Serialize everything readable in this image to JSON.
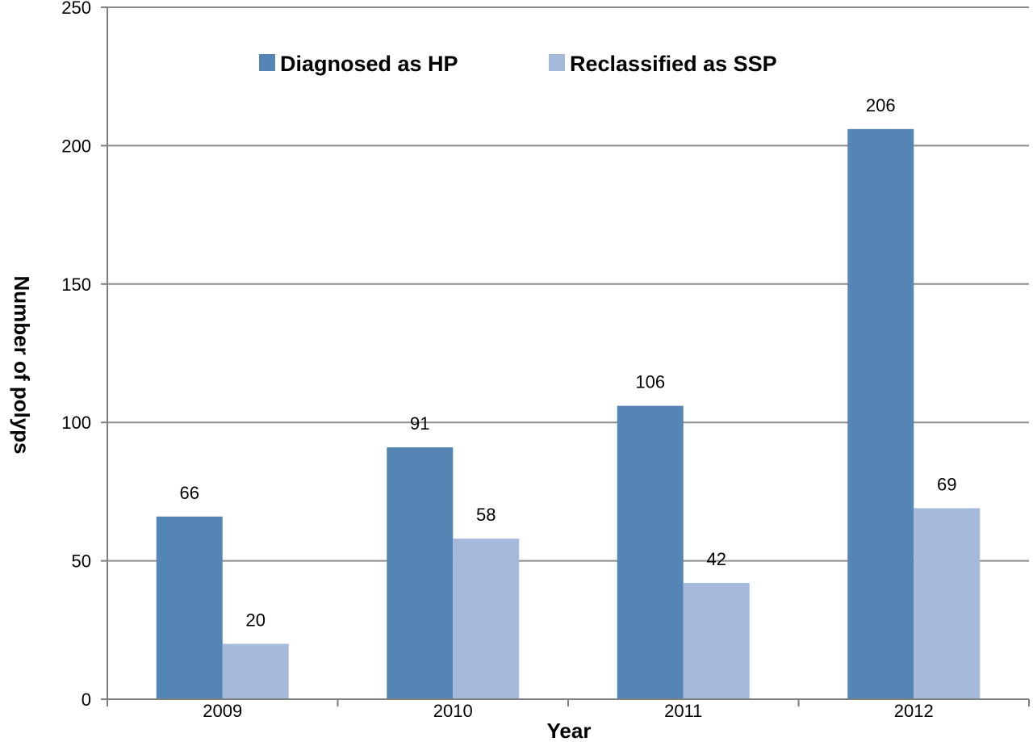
{
  "chart_data": {
    "type": "bar",
    "title": "",
    "xlabel": "Year",
    "ylabel": "Number of polyps",
    "categories": [
      "2009",
      "2010",
      "2011",
      "2012"
    ],
    "series": [
      {
        "name": "Diagnosed as HP",
        "values": [
          66,
          91,
          106,
          206
        ],
        "color": "#5585b5"
      },
      {
        "name": "Reclassified as SSP",
        "values": [
          20,
          58,
          42,
          69
        ],
        "color": "#a5b9da"
      }
    ],
    "ylim": [
      0,
      250
    ],
    "yticks": [
      0,
      50,
      100,
      150,
      200,
      250
    ],
    "grid": true,
    "legend_position": "top-center",
    "data_labels": true
  }
}
